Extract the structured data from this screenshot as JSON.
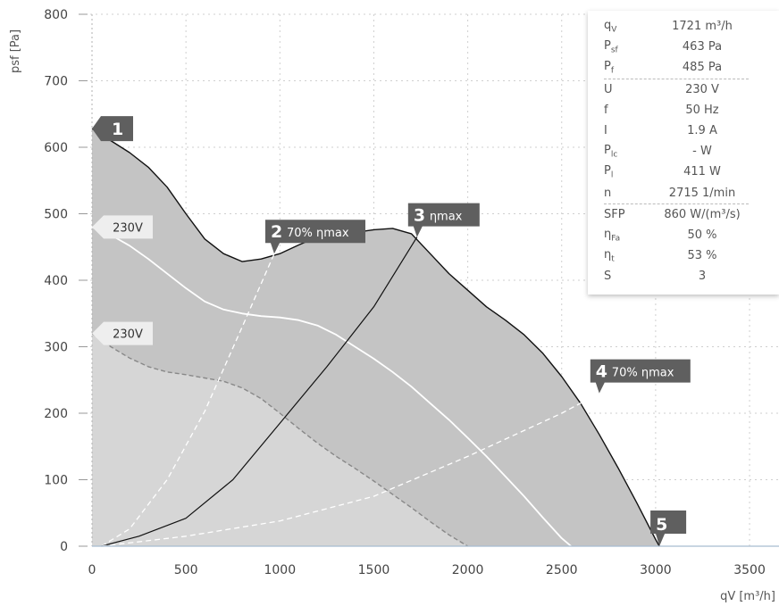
{
  "chart_data": {
    "type": "area",
    "xlabel": "qV [m³/h]",
    "ylabel": "psf [Pa]",
    "xlim": [
      0,
      3600
    ],
    "ylim": [
      0,
      800
    ],
    "x_ticks": [
      0,
      500,
      1000,
      1500,
      2000,
      2500,
      3000,
      3500
    ],
    "y_ticks": [
      0,
      100,
      200,
      300,
      400,
      500,
      600,
      700,
      800
    ],
    "grid": true,
    "series": [
      {
        "role": "max-curve",
        "x": [
          0,
          100,
          200,
          300,
          400,
          500,
          600,
          700,
          800,
          900,
          1000,
          1100,
          1200,
          1300,
          1400,
          1500,
          1600,
          1700,
          1800,
          1900,
          2000,
          2100,
          2200,
          2300,
          2400,
          2500,
          2600,
          2700,
          2800,
          2900,
          3000,
          3020
        ],
        "y": [
          628,
          610,
          592,
          570,
          540,
          500,
          462,
          440,
          428,
          432,
          440,
          453,
          465,
          470,
          472,
          476,
          478,
          470,
          440,
          410,
          385,
          360,
          340,
          318,
          290,
          255,
          215,
          168,
          118,
          65,
          10,
          0
        ]
      },
      {
        "role": "230V-curve",
        "x": [
          0,
          100,
          200,
          300,
          400,
          500,
          600,
          700,
          800,
          900,
          1000,
          1100,
          1200,
          1300,
          1400,
          1500,
          1600,
          1700,
          1800,
          1900,
          2000,
          2100,
          2200,
          2300,
          2400,
          2500,
          2550
        ],
        "y": [
          480,
          468,
          452,
          432,
          410,
          388,
          368,
          356,
          350,
          346,
          344,
          340,
          332,
          318,
          300,
          282,
          262,
          240,
          215,
          190,
          163,
          135,
          105,
          75,
          43,
          12,
          0
        ]
      },
      {
        "role": "230V-curve-low",
        "x": [
          0,
          100,
          200,
          300,
          400,
          500,
          600,
          700,
          800,
          900,
          1000,
          1100,
          1200,
          1300,
          1400,
          1500,
          1600,
          1700,
          1800,
          1900,
          2000
        ],
        "y": [
          320,
          300,
          283,
          270,
          262,
          258,
          253,
          248,
          238,
          222,
          200,
          177,
          155,
          135,
          117,
          98,
          78,
          58,
          37,
          17,
          0
        ]
      },
      {
        "role": "system-curve-2",
        "style": "dashed-white",
        "x": [
          50,
          200,
          400,
          600,
          800,
          970
        ],
        "y": [
          0,
          26,
          100,
          203,
          330,
          440
        ]
      },
      {
        "role": "system-curve-3",
        "style": "solid-black",
        "x": [
          50,
          250,
          500,
          750,
          1000,
          1250,
          1500,
          1730
        ],
        "y": [
          0,
          15,
          42,
          100,
          185,
          270,
          360,
          465
        ]
      },
      {
        "role": "system-curve-4",
        "style": "dashed-white",
        "x": [
          50,
          500,
          1000,
          1500,
          2000,
          2500,
          2700
        ],
        "y": [
          0,
          15,
          38,
          75,
          135,
          200,
          230
        ]
      }
    ],
    "markers": [
      {
        "label": "1",
        "sub": "",
        "x": 0,
        "y": 628
      },
      {
        "label": "2",
        "sub": "70% ηmax",
        "x": 970,
        "y": 440
      },
      {
        "label": "3",
        "sub": "ηmax",
        "x": 1730,
        "y": 465
      },
      {
        "label": "4",
        "sub": "70% ηmax",
        "x": 2700,
        "y": 230
      },
      {
        "label": "5",
        "sub": "",
        "x": 3020,
        "y": 0
      }
    ],
    "voltage_labels": [
      {
        "text": "230V",
        "x": 0,
        "y": 480
      },
      {
        "text": "230V",
        "x": 0,
        "y": 320
      }
    ],
    "colors": {
      "dark_area": "#c4c4c4",
      "light_area": "#d6d6d6",
      "marker": "#5f5f5f",
      "label_bg": "#eeeeee"
    }
  },
  "info_panel": {
    "group1": [
      {
        "sym": "q",
        "sub": "V",
        "val": "1721 m³/h"
      },
      {
        "sym": "P",
        "sub": "sf",
        "val": "463 Pa"
      },
      {
        "sym": "P",
        "sub": "f",
        "val": "485 Pa"
      }
    ],
    "group2": [
      {
        "sym": "U",
        "sub": "",
        "val": "230 V"
      },
      {
        "sym": "f",
        "sub": "",
        "val": "50 Hz"
      },
      {
        "sym": "I",
        "sub": "",
        "val": "1.9 A"
      },
      {
        "sym": "P",
        "sub": "lc",
        "val": "- W"
      },
      {
        "sym": "P",
        "sub": "l",
        "val": "411 W"
      },
      {
        "sym": "n",
        "sub": "",
        "val": "2715 1/min"
      }
    ],
    "group3": [
      {
        "sym": "SFP",
        "sub": "",
        "val": "860 W/(m³/s)"
      },
      {
        "sym": "η",
        "sub": "Fa",
        "val": "50 %"
      },
      {
        "sym": "η",
        "sub": "t",
        "val": "53 %"
      },
      {
        "sym": "S",
        "sub": "",
        "val": "3"
      }
    ]
  }
}
